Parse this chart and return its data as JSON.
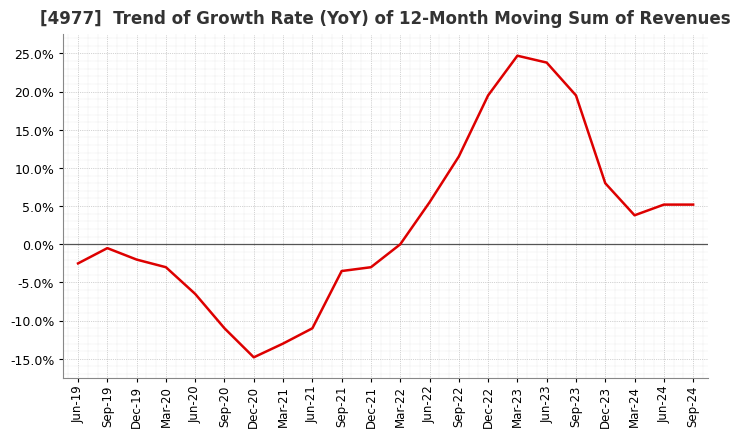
{
  "title": "[4977]  Trend of Growth Rate (YoY) of 12-Month Moving Sum of Revenues",
  "title_fontsize": 12,
  "title_color": "#333333",
  "background_color": "#ffffff",
  "plot_bg_color": "#ffffff",
  "grid_color": "#aaaaaa",
  "grid_linestyle": ":",
  "zero_line_color": "#555555",
  "line_color": "#dd0000",
  "line_width": 1.8,
  "ylim": [
    -0.175,
    0.275
  ],
  "yticks": [
    -0.15,
    -0.1,
    -0.05,
    0.0,
    0.05,
    0.1,
    0.15,
    0.2,
    0.25
  ],
  "xlabels": [
    "Jun-19",
    "Sep-19",
    "Dec-19",
    "Mar-20",
    "Jun-20",
    "Sep-20",
    "Dec-20",
    "Mar-21",
    "Jun-21",
    "Sep-21",
    "Dec-21",
    "Mar-22",
    "Jun-22",
    "Sep-22",
    "Dec-22",
    "Mar-23",
    "Jun-23",
    "Sep-23",
    "Dec-23",
    "Mar-24",
    "Jun-24",
    "Sep-24"
  ],
  "values": [
    -0.025,
    -0.005,
    -0.02,
    -0.03,
    -0.065,
    -0.11,
    -0.148,
    -0.13,
    -0.11,
    -0.035,
    -0.03,
    0.0,
    0.055,
    0.115,
    0.195,
    0.247,
    0.238,
    0.195,
    0.08,
    0.038,
    0.052,
    0.052
  ]
}
